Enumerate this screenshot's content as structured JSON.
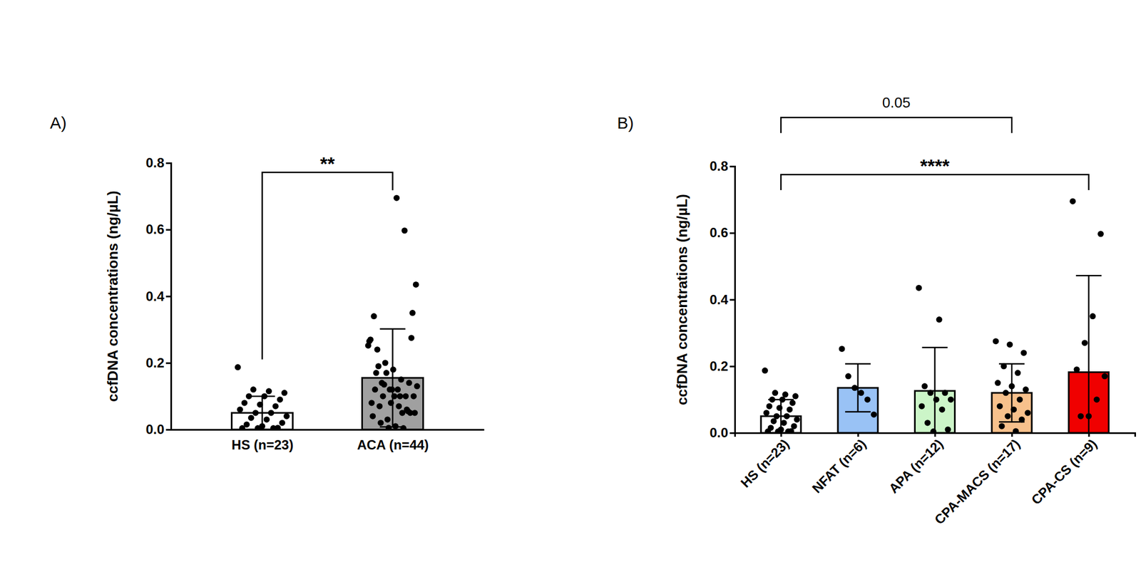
{
  "chart_data": [
    {
      "type": "bar",
      "title": "A)",
      "y_label": "ccfDNA concentrations (ng/µL)",
      "categories": [
        "HS (n=23)",
        "ACA (n=44)"
      ],
      "values": [
        0.05,
        0.155
      ],
      "errors": [
        0.05,
        0.147
      ],
      "colors": [
        "#ffffff",
        "#a0a0a0"
      ],
      "points": [
        [
          0.187,
          0.12,
          0.115,
          0.11,
          0.1,
          0.1,
          0.09,
          0.08,
          0.075,
          0.07,
          0.06,
          0.05,
          0.05,
          0.04,
          0.035,
          0.03,
          0.02,
          0.015,
          0.01,
          0.005,
          0.004,
          0.004,
          0.004
        ],
        [
          0.252,
          0.17,
          0.135,
          0.12,
          0.1,
          0.055,
          0.435,
          0.34,
          0.14,
          0.12,
          0.12,
          0.1,
          0.1,
          0.08,
          0.07,
          0.03,
          0.01,
          0.004,
          0.275,
          0.265,
          0.24,
          0.2,
          0.18,
          0.15,
          0.14,
          0.13,
          0.12,
          0.1,
          0.08,
          0.07,
          0.06,
          0.05,
          0.04,
          0.02,
          0.005,
          0.695,
          0.597,
          0.35,
          0.27,
          0.19,
          0.17,
          0.1,
          0.05,
          0.05
        ]
      ],
      "ylim": [
        0,
        0.8
      ],
      "yticks": [
        {
          "value": 0,
          "label": "0.0"
        },
        0.2,
        0.4,
        0.6,
        0.8
      ],
      "annotations": [
        {
          "between": [
            "HS (n=23)",
            "ACA (n=44)"
          ],
          "text": "**"
        }
      ]
    },
    {
      "type": "bar",
      "title": "B)",
      "y_label": "ccfDNA concentrations (ng/µL)",
      "categories": [
        "HS (n=23)",
        "NFAT (n=6)",
        "APA (n=12)",
        "CPA-MACS (n=17)",
        "CPA-CS (n=9)"
      ],
      "values": [
        0.05,
        0.135,
        0.126,
        0.12,
        0.182
      ],
      "errors": [
        0.05,
        0.072,
        0.13,
        0.087,
        0.29
      ],
      "colors": [
        "#ffffff",
        "#99c2f5",
        "#ccf5c8",
        "#f7c18c",
        "#f00000"
      ],
      "points": [
        [
          0.187,
          0.12,
          0.115,
          0.11,
          0.1,
          0.1,
          0.09,
          0.08,
          0.075,
          0.07,
          0.06,
          0.05,
          0.05,
          0.04,
          0.035,
          0.03,
          0.02,
          0.015,
          0.01,
          0.005,
          0.004,
          0.004,
          0.004
        ],
        [
          0.252,
          0.17,
          0.135,
          0.12,
          0.1,
          0.055
        ],
        [
          0.435,
          0.34,
          0.14,
          0.12,
          0.12,
          0.1,
          0.1,
          0.08,
          0.07,
          0.03,
          0.01,
          0.004
        ],
        [
          0.275,
          0.265,
          0.24,
          0.2,
          0.18,
          0.15,
          0.14,
          0.13,
          0.12,
          0.1,
          0.08,
          0.07,
          0.06,
          0.05,
          0.04,
          0.02,
          0.005
        ],
        [
          0.695,
          0.597,
          0.35,
          0.27,
          0.19,
          0.17,
          0.1,
          0.05,
          0.05
        ]
      ],
      "ylim": [
        0,
        0.8
      ],
      "yticks": [
        {
          "value": 0,
          "label": "0.0"
        },
        0.2,
        0.4,
        0.6,
        0.8
      ],
      "annotations": [
        {
          "between": [
            "HS (n=23)",
            "CPA-MACS (n=17)"
          ],
          "text": "0.05"
        },
        {
          "between": [
            "HS (n=23)",
            "CPA-CS (n=9)"
          ],
          "text": "****"
        }
      ]
    }
  ]
}
